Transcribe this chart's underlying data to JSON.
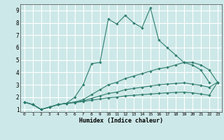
{
  "xlabel": "Humidex (Indice chaleur)",
  "ylabel": "",
  "background_color": "#cde8e8",
  "grid_color": "#ffffff",
  "line_color": "#2e7d6e",
  "xlim": [
    -0.5,
    23.5
  ],
  "ylim": [
    0.8,
    9.5
  ],
  "xticks": [
    0,
    1,
    2,
    3,
    4,
    5,
    6,
    7,
    8,
    9,
    10,
    11,
    12,
    13,
    14,
    15,
    16,
    17,
    18,
    19,
    20,
    21,
    22,
    23
  ],
  "yticks": [
    1,
    2,
    3,
    4,
    5,
    6,
    7,
    8,
    9
  ],
  "series": [
    {
      "x": [
        0,
        1,
        2,
        3,
        4,
        5,
        6,
        7,
        8,
        9,
        10,
        11,
        12,
        13,
        14,
        15,
        16,
        17,
        18,
        19,
        20,
        21,
        22
      ],
      "y": [
        1.6,
        1.4,
        1.0,
        1.2,
        1.4,
        1.5,
        2.0,
        3.0,
        4.7,
        4.8,
        8.3,
        7.9,
        8.6,
        8.0,
        7.6,
        9.2,
        6.6,
        6.0,
        5.4,
        4.8,
        4.6,
        4.2,
        3.2
      ]
    },
    {
      "x": [
        0,
        1,
        2,
        3,
        4,
        5,
        6,
        7,
        8,
        9,
        10,
        11,
        12,
        13,
        14,
        15,
        16,
        17,
        18,
        19,
        20,
        21,
        22,
        23
      ],
      "y": [
        1.6,
        1.4,
        1.0,
        1.2,
        1.4,
        1.5,
        1.6,
        1.8,
        2.2,
        2.6,
        3.0,
        3.2,
        3.5,
        3.7,
        3.9,
        4.1,
        4.3,
        4.4,
        4.6,
        4.8,
        4.8,
        4.6,
        4.2,
        3.2
      ]
    },
    {
      "x": [
        0,
        1,
        2,
        3,
        4,
        5,
        6,
        7,
        8,
        9,
        10,
        11,
        12,
        13,
        14,
        15,
        16,
        17,
        18,
        19,
        20,
        21,
        22,
        23
      ],
      "y": [
        1.6,
        1.4,
        1.0,
        1.2,
        1.4,
        1.5,
        1.6,
        1.7,
        1.9,
        2.1,
        2.3,
        2.4,
        2.6,
        2.7,
        2.8,
        2.9,
        3.0,
        3.05,
        3.1,
        3.15,
        3.05,
        2.95,
        2.8,
        3.2
      ]
    },
    {
      "x": [
        0,
        1,
        2,
        3,
        4,
        5,
        6,
        7,
        8,
        9,
        10,
        11,
        12,
        13,
        14,
        15,
        16,
        17,
        18,
        19,
        20,
        21,
        22,
        23
      ],
      "y": [
        1.6,
        1.4,
        1.0,
        1.2,
        1.4,
        1.5,
        1.55,
        1.65,
        1.75,
        1.85,
        1.95,
        2.0,
        2.1,
        2.15,
        2.2,
        2.25,
        2.3,
        2.35,
        2.38,
        2.4,
        2.35,
        2.25,
        2.15,
        3.2
      ]
    }
  ]
}
